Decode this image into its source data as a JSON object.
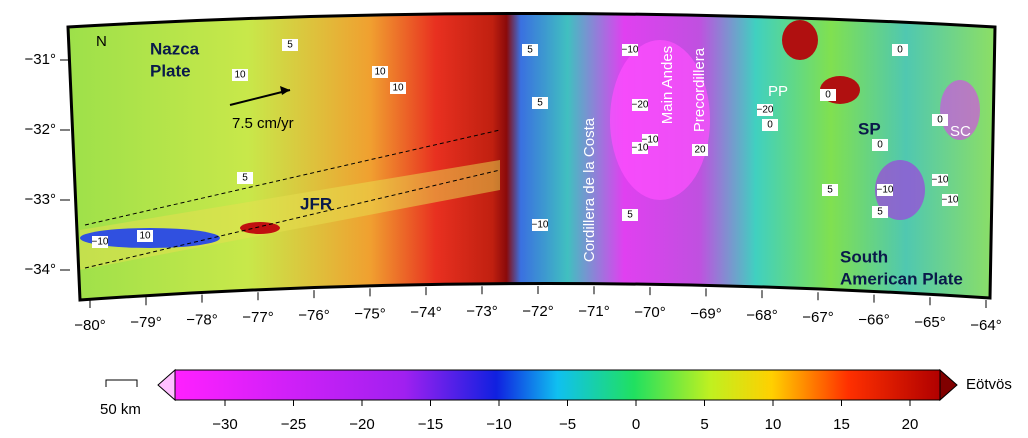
{
  "map": {
    "north": "N",
    "lon_ticks": [
      "−80°",
      "−79°",
      "−78°",
      "−77°",
      "−76°",
      "−75°",
      "−74°",
      "−73°",
      "−72°",
      "−71°",
      "−70°",
      "−69°",
      "−68°",
      "−67°",
      "−66°",
      "−65°",
      "−64°"
    ],
    "lat_ticks": [
      "−31°",
      "−32°",
      "−33°",
      "−34°"
    ],
    "labels": {
      "nazca": "Nazca",
      "plate": "Plate",
      "velocity": "7.5 cm/yr",
      "jfr": "JFR",
      "costa": "Cordillera de la Costa",
      "andes": "Main Andes",
      "precord": "Precordillera",
      "pp": "PP",
      "sp": "SP",
      "sc": "SC",
      "south": "South",
      "american": "American Plate"
    },
    "contour_labels": [
      "5",
      "10",
      "10",
      "10",
      "5",
      "5",
      "−10",
      "5",
      "−10",
      "10",
      "−10",
      "−20",
      "−10",
      "−10",
      "5",
      "−10",
      "−20",
      "0",
      "0",
      "20",
      "0",
      "5",
      "5",
      "−10",
      "0",
      "−10",
      "0"
    ]
  },
  "colorbar": {
    "ticks": [
      "−30",
      "−25",
      "−20",
      "−15",
      "−10",
      "−5",
      "0",
      "5",
      "10",
      "15",
      "20"
    ],
    "unit": "Eötvös"
  },
  "scale_bar": {
    "label": "50 km"
  }
}
